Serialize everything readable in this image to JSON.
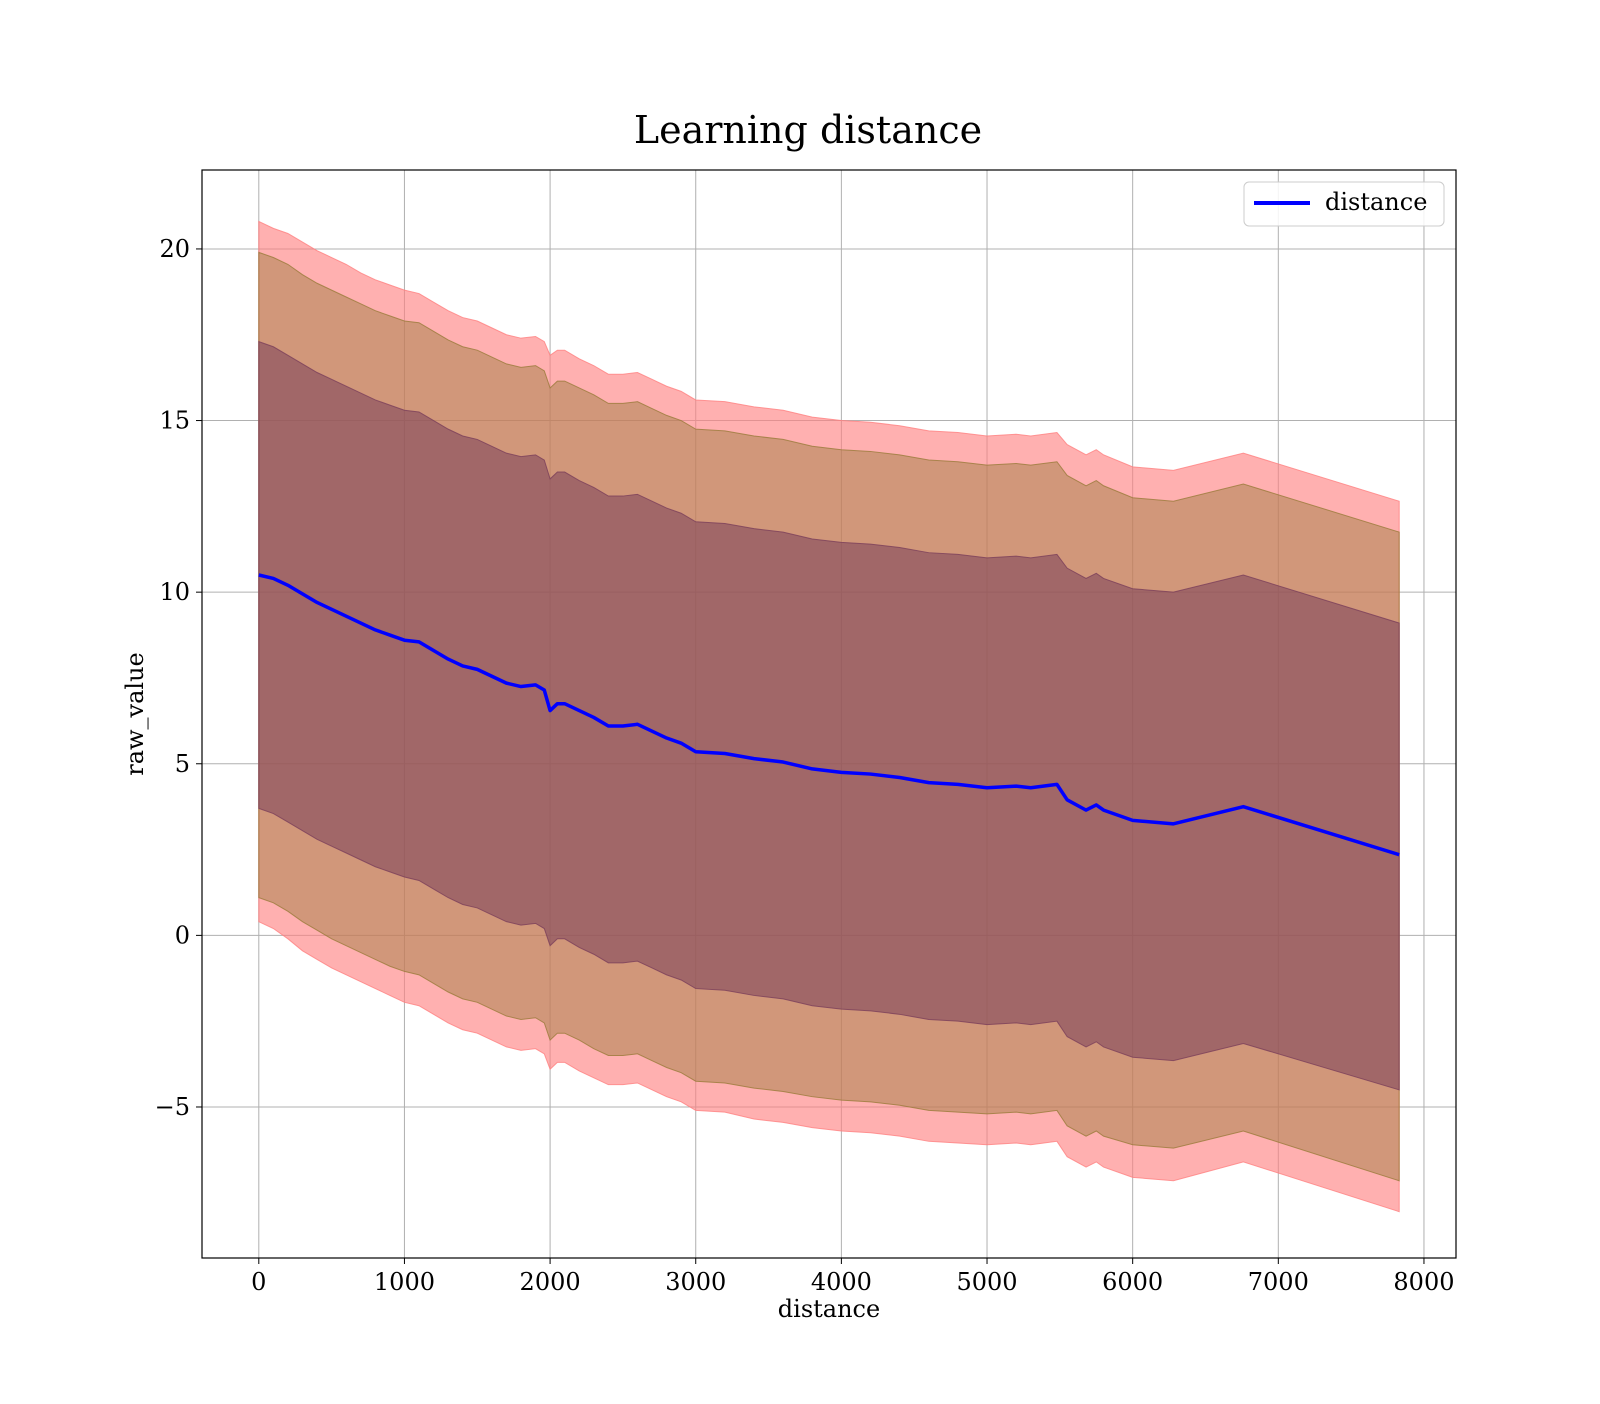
{
  "chart_data": {
    "type": "line",
    "title": "Learning distance",
    "xlabel": "distance",
    "ylabel": "raw_value",
    "xlim": [
      -390,
      8220
    ],
    "ylim": [
      -9.4,
      22.3
    ],
    "xticks": [
      0,
      1000,
      2000,
      3000,
      4000,
      5000,
      6000,
      7000,
      8000
    ],
    "xtick_labels": [
      "0",
      "1000",
      "2000",
      "3000",
      "4000",
      "5000",
      "6000",
      "7000",
      "8000"
    ],
    "yticks": [
      -5,
      0,
      5,
      10,
      15,
      20
    ],
    "ytick_labels": [
      "−5",
      "0",
      "5",
      "10",
      "15",
      "20"
    ],
    "grid": true,
    "legend": {
      "placement": "top-right",
      "entries": [
        "distance"
      ]
    },
    "colors": {
      "line": "#0000ff",
      "band_outer": "#ff8080",
      "band_middle": "#9a7a3a",
      "band_inner": "#7a3f5a"
    },
    "x": [
      0,
      100,
      200,
      300,
      400,
      500,
      600,
      700,
      800,
      900,
      1000,
      1100,
      1200,
      1300,
      1400,
      1500,
      1600,
      1700,
      1800,
      1900,
      1960,
      2000,
      2050,
      2100,
      2200,
      2300,
      2400,
      2500,
      2600,
      2700,
      2800,
      2900,
      3000,
      3200,
      3400,
      3600,
      3800,
      4000,
      4200,
      4400,
      4600,
      4800,
      5000,
      5200,
      5300,
      5480,
      5550,
      5680,
      5750,
      5800,
      6000,
      6280,
      6760,
      7830
    ],
    "series": [
      {
        "name": "distance",
        "values": [
          10.5,
          10.4,
          10.2,
          9.95,
          9.7,
          9.5,
          9.3,
          9.1,
          8.9,
          8.75,
          8.6,
          8.55,
          8.3,
          8.05,
          7.85,
          7.75,
          7.55,
          7.35,
          7.25,
          7.3,
          7.15,
          6.55,
          6.75,
          6.75,
          6.55,
          6.35,
          6.1,
          6.1,
          6.15,
          5.95,
          5.75,
          5.6,
          5.35,
          5.3,
          5.15,
          5.05,
          4.85,
          4.75,
          4.7,
          4.6,
          4.45,
          4.4,
          4.3,
          4.35,
          4.3,
          4.4,
          3.95,
          3.65,
          3.8,
          3.65,
          3.35,
          3.25,
          3.75,
          2.35
        ]
      }
    ],
    "bands": [
      {
        "lower": [
          0.4,
          0.2,
          -0.1,
          -0.45,
          -0.7,
          -0.95,
          -1.15,
          -1.35,
          -1.55,
          -1.75,
          -1.95,
          -2.05,
          -2.3,
          -2.55,
          -2.75,
          -2.85,
          -3.05,
          -3.25,
          -3.35,
          -3.3,
          -3.45,
          -3.9,
          -3.7,
          -3.7,
          -3.95,
          -4.15,
          -4.35,
          -4.35,
          -4.3,
          -4.5,
          -4.7,
          -4.85,
          -5.1,
          -5.15,
          -5.35,
          -5.45,
          -5.6,
          -5.7,
          -5.75,
          -5.85,
          -6.0,
          -6.05,
          -6.1,
          -6.05,
          -6.1,
          -6.0,
          -6.45,
          -6.75,
          -6.6,
          -6.75,
          -7.05,
          -7.15,
          -6.6,
          -8.05
        ],
        "upper": [
          20.8,
          20.6,
          20.45,
          20.2,
          19.95,
          19.75,
          19.55,
          19.3,
          19.1,
          18.95,
          18.8,
          18.7,
          18.45,
          18.2,
          18.0,
          17.9,
          17.7,
          17.5,
          17.4,
          17.45,
          17.3,
          16.9,
          17.05,
          17.05,
          16.8,
          16.6,
          16.35,
          16.35,
          16.4,
          16.2,
          16.0,
          15.85,
          15.6,
          15.55,
          15.4,
          15.3,
          15.1,
          15.0,
          14.95,
          14.85,
          14.7,
          14.65,
          14.55,
          14.6,
          14.55,
          14.65,
          14.3,
          14.0,
          14.15,
          14.0,
          13.65,
          13.55,
          14.05,
          12.65
        ]
      },
      {
        "lower": [
          1.1,
          0.95,
          0.7,
          0.4,
          0.15,
          -0.1,
          -0.3,
          -0.5,
          -0.7,
          -0.9,
          -1.05,
          -1.15,
          -1.4,
          -1.65,
          -1.85,
          -1.95,
          -2.15,
          -2.35,
          -2.45,
          -2.4,
          -2.55,
          -3.05,
          -2.85,
          -2.85,
          -3.05,
          -3.3,
          -3.5,
          -3.5,
          -3.45,
          -3.65,
          -3.85,
          -4.0,
          -4.25,
          -4.3,
          -4.45,
          -4.55,
          -4.7,
          -4.8,
          -4.85,
          -4.95,
          -5.1,
          -5.15,
          -5.2,
          -5.15,
          -5.2,
          -5.1,
          -5.55,
          -5.85,
          -5.7,
          -5.85,
          -6.1,
          -6.2,
          -5.7,
          -7.15
        ],
        "upper": [
          19.9,
          19.75,
          19.55,
          19.25,
          19.0,
          18.8,
          18.6,
          18.4,
          18.2,
          18.05,
          17.9,
          17.85,
          17.6,
          17.35,
          17.15,
          17.05,
          16.85,
          16.65,
          16.55,
          16.6,
          16.45,
          15.95,
          16.15,
          16.15,
          15.95,
          15.75,
          15.5,
          15.5,
          15.55,
          15.35,
          15.15,
          15.0,
          14.75,
          14.7,
          14.55,
          14.45,
          14.25,
          14.15,
          14.1,
          14.0,
          13.85,
          13.8,
          13.7,
          13.75,
          13.7,
          13.8,
          13.4,
          13.1,
          13.25,
          13.1,
          12.75,
          12.65,
          13.15,
          11.75
        ]
      },
      {
        "lower": [
          3.7,
          3.55,
          3.3,
          3.05,
          2.8,
          2.6,
          2.4,
          2.2,
          2.0,
          1.85,
          1.7,
          1.6,
          1.35,
          1.1,
          0.9,
          0.8,
          0.6,
          0.4,
          0.3,
          0.35,
          0.2,
          -0.3,
          -0.1,
          -0.1,
          -0.35,
          -0.55,
          -0.8,
          -0.8,
          -0.75,
          -0.95,
          -1.15,
          -1.3,
          -1.55,
          -1.6,
          -1.75,
          -1.85,
          -2.05,
          -2.15,
          -2.2,
          -2.3,
          -2.45,
          -2.5,
          -2.6,
          -2.55,
          -2.6,
          -2.5,
          -2.95,
          -3.25,
          -3.1,
          -3.25,
          -3.55,
          -3.65,
          -3.15,
          -4.5
        ],
        "upper": [
          17.3,
          17.15,
          16.9,
          16.65,
          16.4,
          16.2,
          16.0,
          15.8,
          15.6,
          15.45,
          15.3,
          15.25,
          15.0,
          14.75,
          14.55,
          14.45,
          14.25,
          14.05,
          13.95,
          14.0,
          13.85,
          13.3,
          13.5,
          13.5,
          13.25,
          13.05,
          12.8,
          12.8,
          12.85,
          12.65,
          12.45,
          12.3,
          12.05,
          12.0,
          11.85,
          11.75,
          11.55,
          11.45,
          11.4,
          11.3,
          11.15,
          11.1,
          11.0,
          11.05,
          11.0,
          11.1,
          10.7,
          10.4,
          10.55,
          10.4,
          10.1,
          10.0,
          10.5,
          9.1
        ]
      }
    ]
  }
}
